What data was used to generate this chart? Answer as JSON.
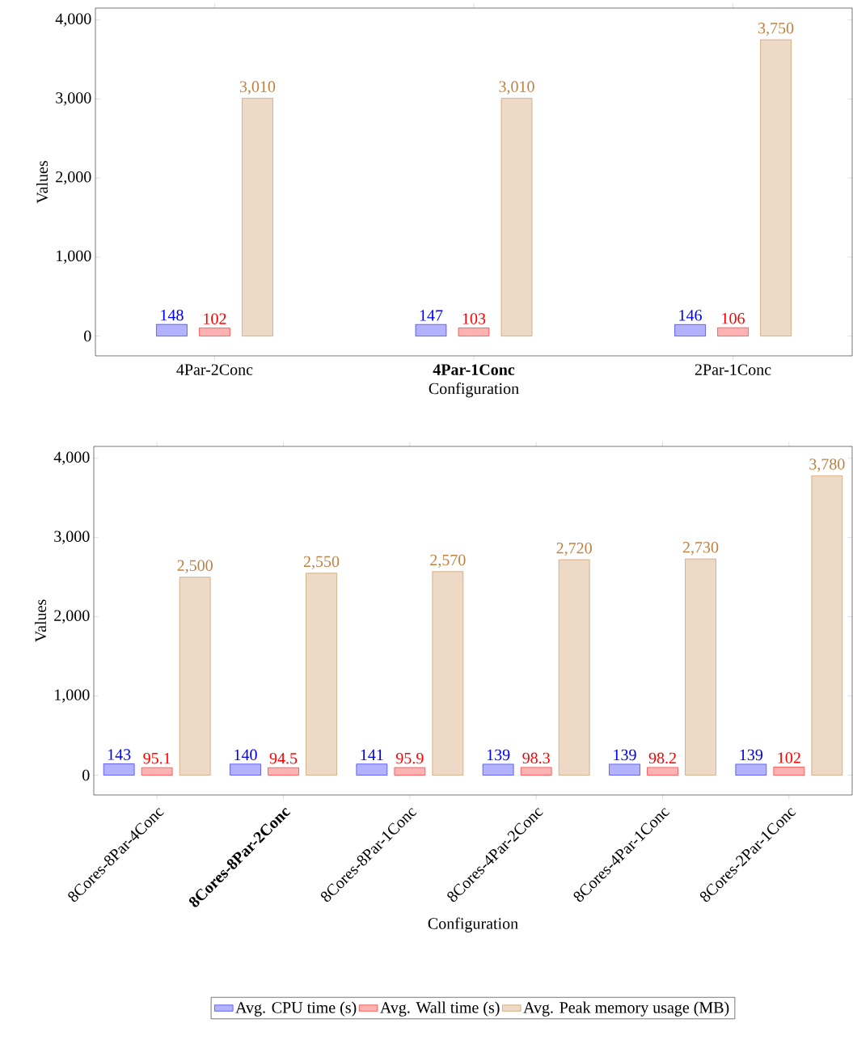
{
  "chart_data": [
    {
      "type": "bar",
      "xlabel": "Configuration",
      "ylabel": "Values",
      "categories": [
        "4Par-2Conc",
        "**4Par-1Conc**",
        "2Par-1Conc"
      ],
      "series": [
        {
          "color": "#0000ff",
          "values": [
            148,
            147,
            146
          ],
          "value_labels": [
            "148",
            "147",
            "146"
          ]
        },
        {
          "color": "#ff0000",
          "values": [
            102,
            103,
            106
          ],
          "value_labels": [
            "102",
            "103",
            "106"
          ]
        },
        {
          "color": "#bf8040",
          "values": [
            3010,
            3010,
            3750
          ],
          "value_labels": [
            "3,010",
            "3,010",
            "3,750"
          ]
        }
      ],
      "ylim": [
        -250,
        4150
      ],
      "yticks": [
        0,
        {
          "value": 1000,
          "label": "1,000"
        },
        {
          "value": 2000,
          "label": "2,000"
        },
        {
          "value": 3000,
          "label": "3,000"
        },
        {
          "value": 4000,
          "label": "4,000"
        }
      ]
    },
    {
      "type": "bar",
      "xlabel": "Configuration",
      "ylabel": "Values",
      "categories": [
        "8Cores-8Par-4Conc",
        "**8Cores-8Par-2Conc**",
        "8Cores-8Par-1Conc",
        "8Cores-4Par-2Conc",
        "8Cores-4Par-1Conc",
        "8Cores-2Par-1Conc"
      ],
      "series": [
        {
          "name": "Avg. CPU time (s)",
          "color": "#0000ff",
          "values": [
            143,
            140,
            141,
            139,
            139,
            139
          ],
          "value_labels": [
            "143",
            "140",
            "141",
            "139",
            "139",
            "139"
          ]
        },
        {
          "name": "Avg. Wall time (s)",
          "color": "#ff0000",
          "values": [
            95.1,
            94.5,
            95.9,
            98.3,
            98.2,
            102
          ],
          "value_labels": [
            "95.1",
            "94.5",
            "95.9",
            "98.3",
            "98.2",
            "102"
          ]
        },
        {
          "name": "Avg. Peak memory usage (MB)",
          "color": "#bf8040",
          "values": [
            2500,
            2550,
            2570,
            2720,
            2730,
            3780
          ],
          "value_labels": [
            "2,500",
            "2,550",
            "2,570",
            "2,720",
            "2,730",
            "3,780"
          ]
        }
      ],
      "ylim": [
        -250,
        4150
      ],
      "yticks": [
        0,
        {
          "value": 1000,
          "label": "1,000"
        },
        {
          "value": 2000,
          "label": "2,000"
        },
        {
          "value": 3000,
          "label": "3,000"
        },
        {
          "value": 4000,
          "label": "4,000"
        }
      ],
      "legend": "bottom"
    }
  ]
}
